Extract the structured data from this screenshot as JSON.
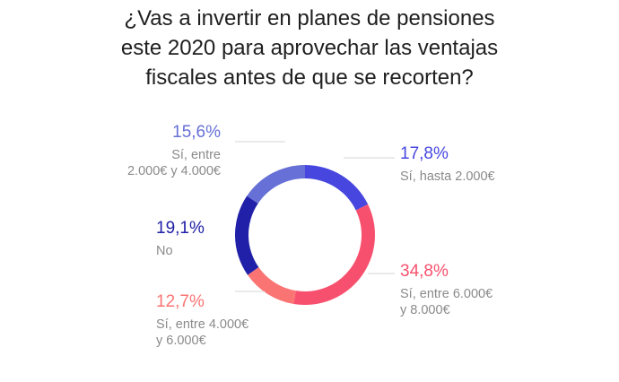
{
  "title_lines": [
    "¿Vas a invertir en planes de pensiones",
    "este 2020 para aprovechar las ventajas",
    "fiscales antes de que se recorten?"
  ],
  "chart_data": {
    "type": "pie",
    "style": "donut",
    "title": "¿Vas a invertir en planes de pensiones este 2020 para aprovechar las ventajas fiscales antes de que se recorten?",
    "start_angle_deg": 0,
    "direction": "clockwise",
    "slices": [
      {
        "id": "hasta2000",
        "value": 17.8,
        "pct_label": "17,8%",
        "label_lines": [
          "Sí, hasta 2.000€"
        ],
        "color": "#4747e0"
      },
      {
        "id": "6000a8000",
        "value": 34.8,
        "pct_label": "34,8%",
        "label_lines": [
          "Sí, entre 6.000€",
          "y 8.000€"
        ],
        "color": "#f7506e"
      },
      {
        "id": "4000a6000",
        "value": 12.7,
        "pct_label": "12,7%",
        "label_lines": [
          "Sí, entre 4.000€",
          "y 6.000€"
        ],
        "color": "#fb7474"
      },
      {
        "id": "no",
        "value": 19.1,
        "pct_label": "19,1%",
        "label_lines": [
          "No"
        ],
        "color": "#2020a8"
      },
      {
        "id": "2000a4000",
        "value": 15.6,
        "pct_label": "15,6%",
        "label_lines": [
          "Sí, entre",
          "2.000€ y 4.000€"
        ],
        "color": "#6670d6"
      }
    ]
  }
}
